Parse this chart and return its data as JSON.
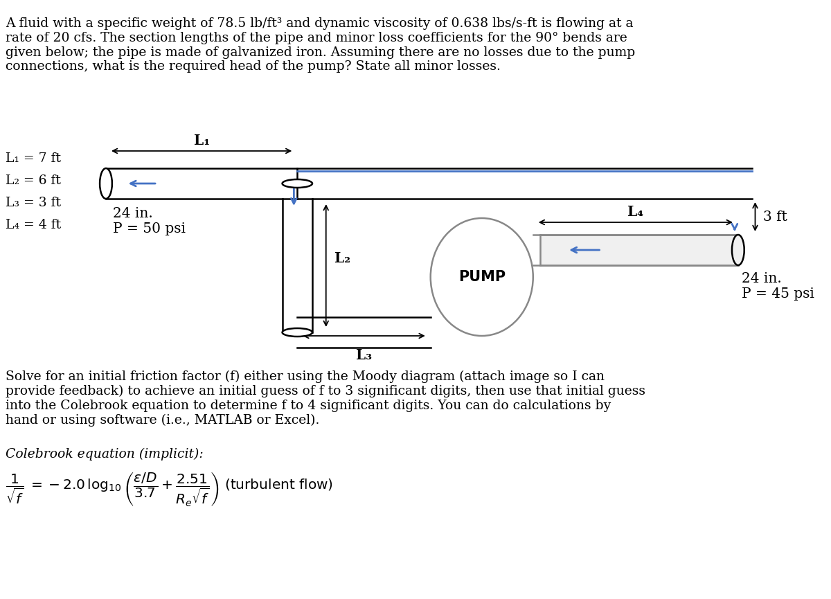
{
  "bg_color": "#ffffff",
  "text_color": "#000000",
  "blue_color": "#4472C4",
  "header_text": "A fluid with a specific weight of 78.5 lb/ft³ and dynamic viscosity of 0.638 lbs/s-ft is flowing at a\nrate of 20 cfs. The section lengths of the pipe and minor loss coefficients for the 90° bends are\ngiven below; the pipe is made of galvanized iron. Assuming there are no losses due to the pump\nconnections, what is the required head of the pump? State all minor losses.",
  "given_text": "L₁ = 7 ft\nL₂ = 6 ft\nL₃ = 3 ft\nL₄ = 4 ft",
  "footer_text1": "Solve for an initial friction factor (f) either using the Moody diagram (attach image so I can\nprovide feedback) to achieve an initial guess of f to 3 significant digits, then use that initial guess\ninto the Colebrook equation to determine f to 4 significant digits. You can do calculations by\nhand or using software (i.e., MATLAB or Excel).",
  "footer_text2": "Colebrook equation (implicit):",
  "font_size_header": 13.5,
  "font_size_body": 13.5,
  "font_size_given": 13.5,
  "font_size_diagram": 13.5,
  "font_size_large": 15
}
